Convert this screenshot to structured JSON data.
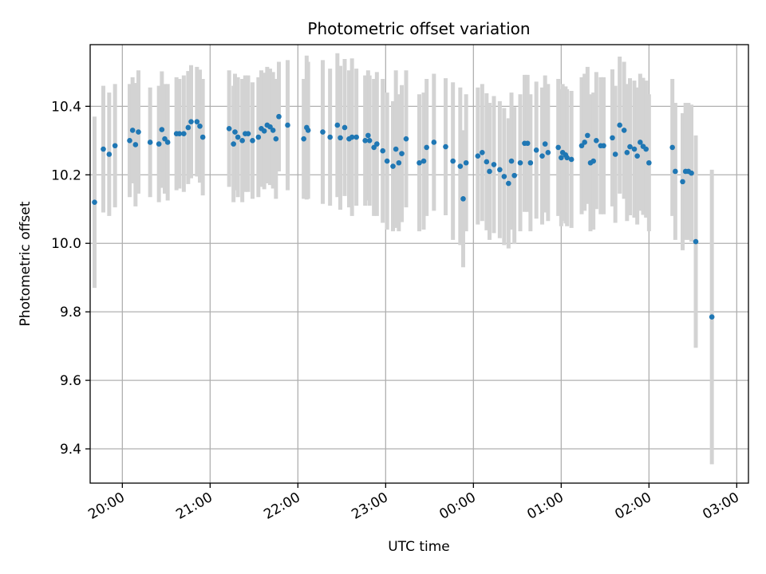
{
  "chart_data": {
    "type": "scatter",
    "title": "Photometric offset variation",
    "xlabel": "UTC time",
    "ylabel": "Photometric offset",
    "ylim": [
      9.3,
      10.58
    ],
    "xlim": [
      "19:38",
      "03:08"
    ],
    "grid": true,
    "y_ticks": [
      "9.4",
      "9.6",
      "9.8",
      "10.0",
      "10.2",
      "10.4"
    ],
    "x_ticks": [
      "20:00",
      "21:00",
      "22:00",
      "23:00",
      "00:00",
      "01:00",
      "02:00",
      "03:00"
    ],
    "colors": {
      "point": "#1f77b4",
      "errorbar": "#d3d3d3",
      "grid": "#b0b0b0",
      "axis": "#000000"
    },
    "series": [
      {
        "x": [
          "19:41",
          "19:47",
          "19:51",
          "19:55",
          "20:05",
          "20:07",
          "20:09",
          "20:11",
          "20:19",
          "20:25",
          "20:27",
          "20:29",
          "20:31",
          "20:37",
          "20:39",
          "20:42",
          "20:45",
          "20:47",
          "20:51",
          "20:53",
          "20:55",
          "21:13",
          "21:16",
          "21:17",
          "21:19",
          "21:22",
          "21:24",
          "21:26",
          "21:29",
          "21:33",
          "21:35",
          "21:37",
          "21:39",
          "21:41",
          "21:43",
          "21:45",
          "21:47",
          "21:53",
          "22:04",
          "22:06",
          "22:07",
          "22:17",
          "22:22",
          "22:27",
          "22:29",
          "22:32",
          "22:35",
          "22:37",
          "22:40",
          "22:46",
          "22:48",
          "22:49",
          "22:52",
          "22:54",
          "22:58",
          "23:01",
          "23:05",
          "23:07",
          "23:09",
          "23:11",
          "23:14",
          "23:23",
          "23:26",
          "23:28",
          "23:33",
          "23:41",
          "23:46",
          "23:51",
          "23:53",
          "23:55",
          "24:03",
          "24:06",
          "24:09",
          "24:11",
          "24:14",
          "24:18",
          "24:21",
          "24:24",
          "24:26",
          "24:28",
          "24:32",
          "24:35",
          "24:37",
          "24:39",
          "24:43",
          "24:47",
          "24:49",
          "24:51",
          "24:58",
          "25:00",
          "25:01",
          "25:03",
          "25:04",
          "25:07",
          "25:14",
          "25:16",
          "25:18",
          "25:20",
          "25:22",
          "25:24",
          "25:27",
          "25:29",
          "25:35",
          "25:37",
          "25:40",
          "25:43",
          "25:45",
          "25:47",
          "25:50",
          "25:52",
          "25:54",
          "25:56",
          "25:58",
          "26:00",
          "26:16",
          "26:18",
          "26:23",
          "26:25",
          "26:27",
          "26:29",
          "26:32",
          "26:43"
        ],
        "y": [
          10.12,
          10.275,
          10.26,
          10.285,
          10.3,
          10.33,
          10.288,
          10.325,
          10.295,
          10.29,
          10.332,
          10.305,
          10.295,
          10.32,
          10.32,
          10.32,
          10.338,
          10.355,
          10.355,
          10.342,
          10.31,
          10.335,
          10.29,
          10.325,
          10.31,
          10.3,
          10.32,
          10.32,
          10.3,
          10.31,
          10.335,
          10.328,
          10.345,
          10.34,
          10.33,
          10.305,
          10.37,
          10.345,
          10.305,
          10.338,
          10.33,
          10.325,
          10.31,
          10.345,
          10.308,
          10.338,
          10.305,
          10.31,
          10.31,
          10.3,
          10.315,
          10.3,
          10.28,
          10.29,
          10.27,
          10.24,
          10.225,
          10.275,
          10.235,
          10.262,
          10.305,
          10.235,
          10.24,
          10.28,
          10.295,
          10.282,
          10.24,
          10.225,
          10.13,
          10.235,
          10.255,
          10.265,
          10.238,
          10.21,
          10.23,
          10.215,
          10.195,
          10.175,
          10.24,
          10.198,
          10.235,
          10.292,
          10.292,
          10.235,
          10.272,
          10.255,
          10.29,
          10.265,
          10.28,
          10.25,
          10.265,
          10.258,
          10.25,
          10.245,
          10.285,
          10.295,
          10.315,
          10.235,
          10.24,
          10.3,
          10.285,
          10.285,
          10.308,
          10.26,
          10.345,
          10.33,
          10.265,
          10.282,
          10.275,
          10.255,
          10.295,
          10.283,
          10.275,
          10.235,
          10.28,
          10.21,
          10.18,
          10.21,
          10.21,
          10.205,
          10.005,
          9.785
        ],
        "yerr": [
          0.25,
          0.185,
          0.18,
          0.18,
          0.165,
          0.155,
          0.18,
          0.18,
          0.16,
          0.17,
          0.17,
          0.16,
          0.17,
          0.165,
          0.16,
          0.17,
          0.165,
          0.165,
          0.16,
          0.165,
          0.17,
          0.17,
          0.17,
          0.17,
          0.175,
          0.18,
          0.17,
          0.17,
          0.17,
          0.175,
          0.17,
          0.17,
          0.17,
          0.17,
          0.17,
          0.175,
          0.16,
          0.19,
          0.175,
          0.21,
          0.2,
          0.21,
          0.2,
          0.21,
          0.21,
          0.2,
          0.2,
          0.23,
          0.2,
          0.19,
          0.19,
          0.19,
          0.2,
          0.21,
          0.21,
          0.2,
          0.19,
          0.23,
          0.2,
          0.2,
          0.2,
          0.2,
          0.2,
          0.2,
          0.2,
          0.2,
          0.23,
          0.23,
          0.2,
          0.2,
          0.2,
          0.2,
          0.2,
          0.2,
          0.2,
          0.2,
          0.2,
          0.19,
          0.2,
          0.2,
          0.2,
          0.2,
          0.2,
          0.2,
          0.2,
          0.2,
          0.2,
          0.2,
          0.2,
          0.2,
          0.2,
          0.2,
          0.2,
          0.2,
          0.2,
          0.2,
          0.2,
          0.2,
          0.2,
          0.2,
          0.2,
          0.2,
          0.2,
          0.2,
          0.2,
          0.2,
          0.2,
          0.2,
          0.2,
          0.2,
          0.2,
          0.2,
          0.2,
          0.2,
          0.2,
          0.2,
          0.2,
          0.2,
          0.2,
          0.2,
          0.31,
          0.43
        ]
      }
    ]
  }
}
